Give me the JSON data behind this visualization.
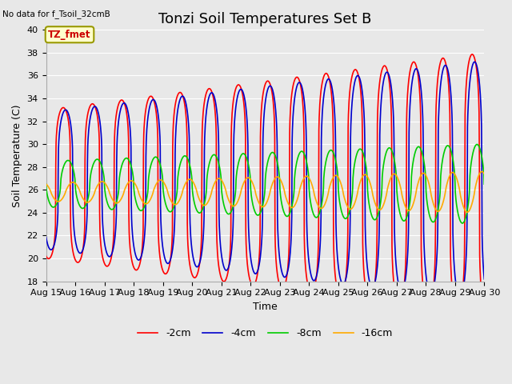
{
  "title": "Tonzi Soil Temperatures Set B",
  "top_left_text": "No data for f_Tsoil_32cmB",
  "legend_box_text": "TZ_fmet",
  "xlabel": "Time",
  "ylabel": "Soil Temperature (C)",
  "ylim": [
    18,
    40
  ],
  "xlim": [
    0,
    360
  ],
  "xtick_labels": [
    "Aug 15",
    "Aug 16",
    "Aug 17",
    "Aug 18",
    "Aug 19",
    "Aug 20",
    "Aug 21",
    "Aug 22",
    "Aug 23",
    "Aug 24",
    "Aug 25",
    "Aug 26",
    "Aug 27",
    "Aug 28",
    "Aug 29",
    "Aug 30"
  ],
  "xtick_positions": [
    0,
    24,
    48,
    72,
    96,
    120,
    144,
    168,
    192,
    216,
    240,
    264,
    288,
    312,
    336,
    360
  ],
  "bg_color": "#e8e8e8",
  "plot_bg_color": "#e8e8e8",
  "grid_color": "#ffffff",
  "line_colors": [
    "#ff0000",
    "#0000cc",
    "#00cc00",
    "#ffaa00"
  ],
  "line_labels": [
    "-2cm",
    "-4cm",
    "-8cm",
    "-16cm"
  ],
  "line_width": 1.2,
  "title_fontsize": 13,
  "label_fontsize": 9,
  "tick_fontsize": 8
}
